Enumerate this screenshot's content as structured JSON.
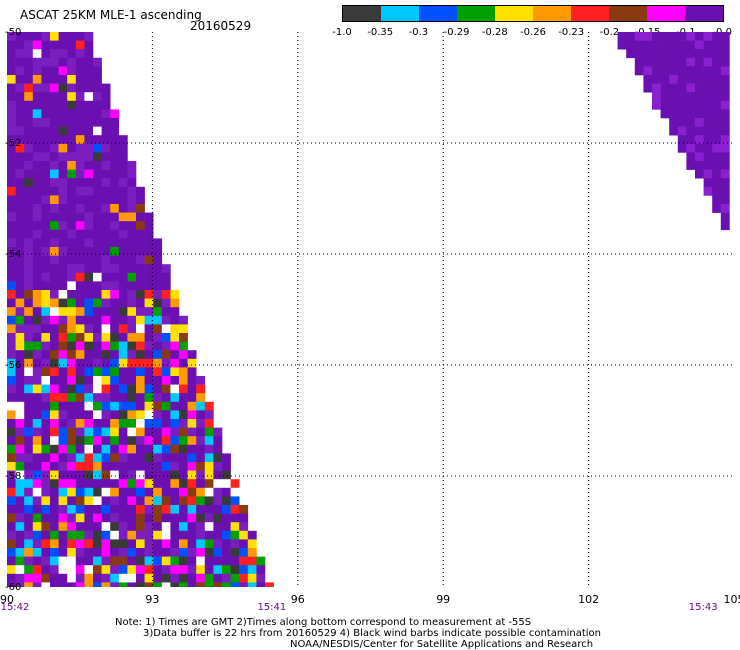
{
  "title": "ASCAT 25KM MLE-1 ascending",
  "date": "20160529",
  "colorbar": {
    "colors": [
      "#3a3a3a",
      "#00c8ff",
      "#0050ff",
      "#00a000",
      "#ffe000",
      "#ff9a00",
      "#ff2020",
      "#8a3a10",
      "#ff00ff",
      "#6a10b0"
    ],
    "labels": [
      "-1.0",
      "-0.35",
      "-0.3",
      "-0.29",
      "-0.28",
      "-0.26",
      "-0.23",
      "-0.2",
      "-0.15",
      "-0.1",
      "0.0"
    ]
  },
  "map": {
    "lon_range": [
      90,
      105
    ],
    "lat_range": [
      -60,
      -50
    ],
    "x_ticks": [
      "90",
      "93",
      "96",
      "99",
      "102",
      "105"
    ],
    "y_ticks": [
      "-50",
      "-52",
      "-54",
      "-56",
      "-58",
      "-60"
    ],
    "time_labels": [
      {
        "text": "15:42",
        "lon": 90
      },
      {
        "text": "15:41",
        "lon": 95.3
      },
      {
        "text": "15:43",
        "lon": 104.2
      }
    ]
  },
  "notes": {
    "line1": "Note: 1) Times are GMT 2)Times along bottom correspond to measurement at -55S",
    "line2": "3)Data buffer is 22 hrs from 20160529 4) Black wind barbs indicate possible contamination",
    "line3": "NOAA/NESDIS/Center for Satellite Applications and Research"
  }
}
